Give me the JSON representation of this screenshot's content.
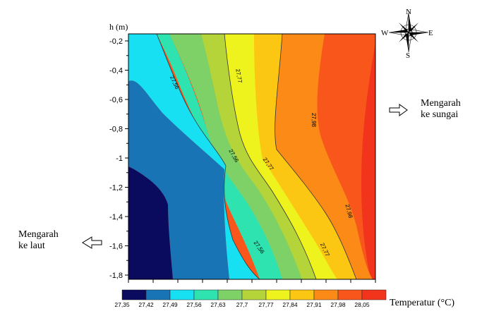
{
  "chart_data": {
    "type": "heatmap",
    "subtype": "filled-contour",
    "ylabel": "h (m)",
    "ylim": [
      -1.8,
      -0.2
    ],
    "y_ticks": [
      "-0,2",
      "-0,4",
      "-0,6",
      "-0,8",
      "-1",
      "-1,2",
      "-1,4",
      "-1,6",
      "-1,8"
    ],
    "y_tick_values": [
      -0.2,
      -0.4,
      -0.6,
      -0.8,
      -1.0,
      -1.2,
      -1.4,
      -1.6,
      -1.8
    ],
    "colorbar": {
      "label": "Temperatur (°C)",
      "levels": [
        "27,35",
        "27,42",
        "27,49",
        "27,56",
        "27,63",
        "27,7",
        "27,77",
        "27,84",
        "27,91",
        "27,98",
        "28,05"
      ],
      "colors": [
        "#0a0a5e",
        "#1874b4",
        "#17e0f2",
        "#2ee3b0",
        "#7ed167",
        "#b5d43a",
        "#eef21d",
        "#fbc713",
        "#fb8a17",
        "#f8561b",
        "#f3341c"
      ]
    },
    "contour_labels": [
      {
        "text": "27,56",
        "angle": 65
      },
      {
        "text": "27,77",
        "angle": 80
      },
      {
        "text": "27,98",
        "angle": 90
      },
      {
        "text": "27,56",
        "angle": 60
      },
      {
        "text": "27,77",
        "angle": 55
      },
      {
        "text": "27,98",
        "angle": 75
      },
      {
        "text": "27,56",
        "angle": 55
      },
      {
        "text": "27,77",
        "angle": 65
      }
    ],
    "grid": false
  },
  "compass": {
    "n": "N",
    "s": "S",
    "e": "E",
    "w": "W"
  },
  "annotations": {
    "right": [
      "Mengarah",
      "ke sungai"
    ],
    "left": [
      "Mengarah",
      "ke laut"
    ]
  }
}
